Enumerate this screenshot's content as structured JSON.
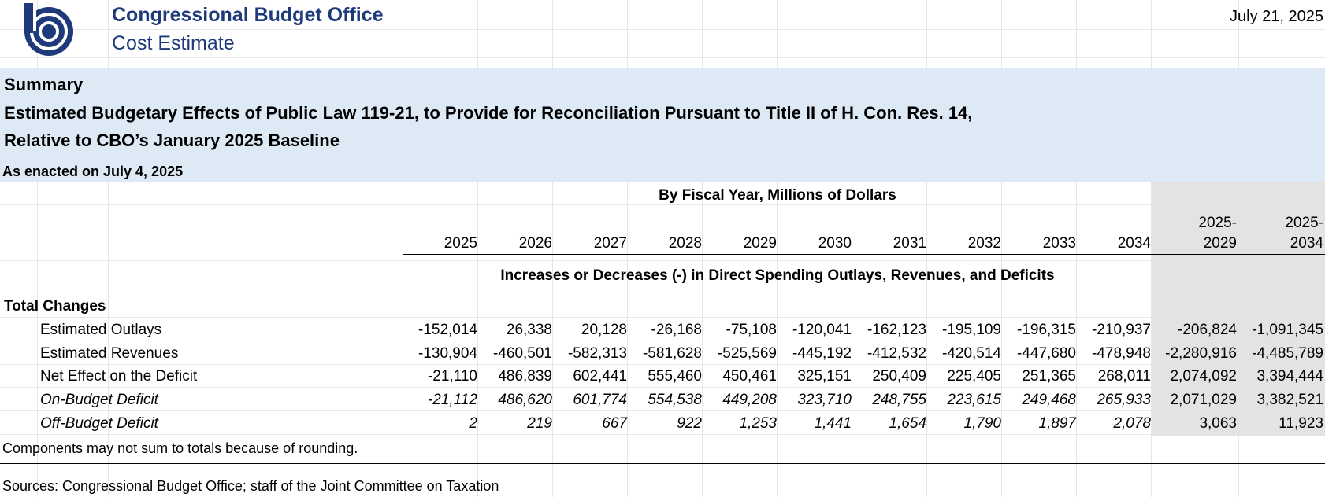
{
  "header": {
    "org_name": "Congressional Budget Office",
    "doc_type": "Cost Estimate",
    "date": "July 21, 2025",
    "brand_color": "#1f3a7a"
  },
  "summary": {
    "line1": "Summary",
    "line2": "Estimated Budgetary Effects of Public Law 119-21, to Provide for Reconciliation Pursuant to Title II of H. Con. Res. 14,",
    "line3": "Relative to CBO’s January 2025 Baseline",
    "enacted": "As enacted on July 4, 2025",
    "band_color": "#dde9f5"
  },
  "table": {
    "fy_title": "By Fiscal Year, Millions of Dollars",
    "years": [
      "2025",
      "2026",
      "2027",
      "2028",
      "2029",
      "2030",
      "2031",
      "2032",
      "2033",
      "2034",
      "2025-\n2029",
      "2025-\n2034"
    ],
    "increases_title": "Increases or Decreases (-) in Direct Spending Outlays, Revenues, and Deficits",
    "section_label": "Total Changes",
    "rows": [
      {
        "label": "Estimated Outlays",
        "italic": false,
        "values": [
          "-152,014",
          "26,338",
          "20,128",
          "-26,168",
          "-75,108",
          "-120,041",
          "-162,123",
          "-195,109",
          "-196,315",
          "-210,937",
          "-206,824",
          "-1,091,345"
        ]
      },
      {
        "label": "Estimated Revenues",
        "italic": false,
        "values": [
          "-130,904",
          "-460,501",
          "-582,313",
          "-581,628",
          "-525,569",
          "-445,192",
          "-412,532",
          "-420,514",
          "-447,680",
          "-478,948",
          "-2,280,916",
          "-4,485,789"
        ]
      },
      {
        "label": "Net Effect on the Deficit",
        "italic": false,
        "values": [
          "-21,110",
          "486,839",
          "602,441",
          "555,460",
          "450,461",
          "325,151",
          "250,409",
          "225,405",
          "251,365",
          "268,011",
          "2,074,092",
          "3,394,444"
        ]
      },
      {
        "label": "On-Budget Deficit",
        "italic": true,
        "values": [
          "-21,112",
          "486,620",
          "601,774",
          "554,538",
          "449,208",
          "323,710",
          "248,755",
          "223,615",
          "249,468",
          "265,933",
          "2,071,029",
          "3,382,521"
        ]
      },
      {
        "label": "Off-Budget Deficit",
        "italic": true,
        "values": [
          "2",
          "219",
          "667",
          "922",
          "1,253",
          "1,441",
          "1,654",
          "1,790",
          "1,897",
          "2,078",
          "3,063",
          "11,923"
        ]
      }
    ]
  },
  "footer": {
    "note": "Components may not sum to totals because of rounding.",
    "sources": "Sources: Congressional Budget Office; staff of the Joint Committee on Taxation"
  }
}
